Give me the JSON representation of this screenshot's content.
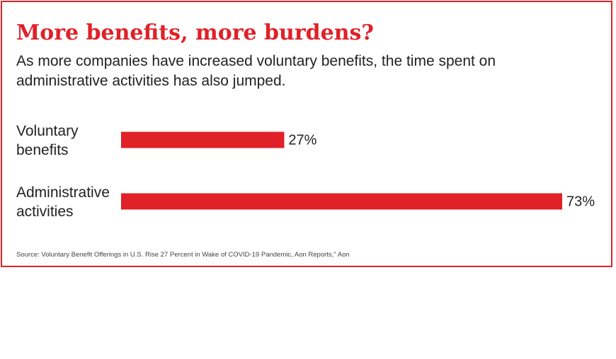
{
  "title": "More benefits, more burdens?",
  "subtitle": "As more companies have increased voluntary benefits, the time spent on administrative activities has also jumped.",
  "source": "Source: Voluntary Benefit Offerings in U.S. Rise 27 Percent in Wake of COVID-19 Pandemic, Aon Reports,\" Aon",
  "colors": {
    "accent": "#e02128",
    "text": "#222222"
  },
  "chart_data": {
    "type": "bar",
    "orientation": "horizontal",
    "categories": [
      [
        "Voluntary",
        "benefits"
      ],
      [
        "Administrative",
        "activities"
      ]
    ],
    "values": [
      27,
      73
    ],
    "data_labels": [
      "27%",
      "73%"
    ],
    "xlim": [
      0,
      73
    ],
    "grid": false,
    "legend": "none"
  }
}
